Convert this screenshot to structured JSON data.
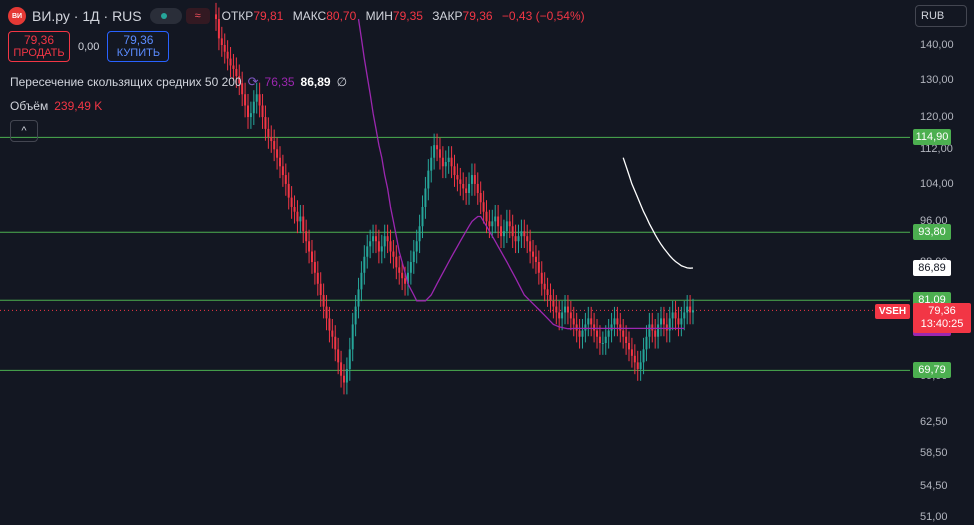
{
  "header": {
    "logo_text": "ВИ",
    "symbol": "ВИ.ру · 1Д · RUS",
    "wave_icon": "≈",
    "ohlc": [
      {
        "key": "ОТКР",
        "value": "79,81"
      },
      {
        "key": "МАКС",
        "value": "80,70"
      },
      {
        "key": "МИН",
        "value": "79,35"
      },
      {
        "key": "ЗАКР",
        "value": "79,36"
      }
    ],
    "change": "−0,43 (−0,54%)"
  },
  "trade": {
    "sell_price": "79,36",
    "sell_label": "ПРОДАТЬ",
    "spread": "0,00",
    "buy_price": "79,36",
    "buy_label": "КУПИТЬ"
  },
  "indicators": {
    "ma_label": "Пересечение скользящих средних 50 200",
    "ma50_value": "76,35",
    "ma200_value": "86,89",
    "null_symbol": "∅",
    "volume_label": "Объём",
    "volume_value": "239,49 K"
  },
  "controls": {
    "collapse_icon": "^"
  },
  "currency": {
    "label": "RUB",
    "icon": "chevron-down-icon"
  },
  "price_axis": {
    "ticks": [
      "140,00",
      "130,00",
      "120,00",
      "112,00",
      "104,00",
      "96,00",
      "88,00",
      "69,00",
      "62,50",
      "58,50",
      "54,50",
      "51,00"
    ]
  },
  "levels": [
    {
      "label": "114,90",
      "value": 114.9
    },
    {
      "label": "93,80",
      "value": 93.8
    },
    {
      "label": "81,09",
      "value": 81.09
    },
    {
      "label": "69,79",
      "value": 69.79
    }
  ],
  "ma_tags": {
    "ma200": "86,89",
    "ma50": "76,35"
  },
  "price_tag": {
    "exchange": "VSEH",
    "price": "79,36",
    "countdown": "13:40:25"
  },
  "colors": {
    "background": "#131722",
    "up": "#26a69a",
    "down": "#f23645",
    "level": "#4caf50",
    "ma50": "#9c27b0",
    "ma200": "#ffffff"
  },
  "chart_data": {
    "type": "candlestick",
    "symbol": "ВИ.ру",
    "interval": "1Д",
    "y_scale": "log",
    "ylim": [
      50,
      150
    ],
    "close": [
      148,
      142,
      140,
      138,
      136,
      134,
      133,
      131,
      129,
      126,
      123,
      120,
      121,
      124,
      126,
      123,
      120,
      117,
      115,
      114,
      112,
      110,
      108,
      106,
      104,
      101,
      99,
      98,
      96,
      97,
      94,
      92,
      90,
      88,
      86,
      84,
      82,
      80,
      78,
      76,
      75,
      73,
      71,
      69,
      68,
      70,
      73,
      77,
      80,
      83,
      86,
      89,
      91,
      92,
      93,
      92,
      90,
      91,
      93,
      92,
      90,
      89,
      87,
      86,
      85,
      84,
      86,
      88,
      90,
      92,
      95,
      99,
      103,
      107,
      110,
      113,
      112,
      110,
      108,
      109,
      110,
      108,
      106,
      105,
      104,
      103,
      102,
      104,
      106,
      104,
      102,
      100,
      98,
      96,
      95,
      96,
      97,
      95,
      93,
      94,
      96,
      95,
      93,
      92,
      93,
      94,
      93,
      92,
      90,
      89,
      88,
      86,
      84,
      83,
      82,
      81,
      80,
      79,
      78,
      79,
      80,
      79,
      78,
      77,
      76,
      75,
      76,
      77,
      78,
      77,
      76,
      75,
      74,
      74,
      75,
      76,
      77,
      78,
      77,
      76,
      75,
      74,
      73,
      72,
      71,
      70,
      71,
      73,
      75,
      77,
      76,
      75,
      77,
      78,
      77,
      76,
      78,
      79,
      78,
      77,
      78,
      79,
      80,
      79,
      79.36
    ],
    "ma50": [
      null,
      null,
      null,
      null,
      null,
      null,
      null,
      null,
      null,
      null,
      null,
      null,
      null,
      null,
      null,
      null,
      null,
      null,
      null,
      null,
      null,
      null,
      null,
      null,
      null,
      null,
      null,
      null,
      null,
      null,
      null,
      null,
      null,
      null,
      null,
      null,
      null,
      null,
      null,
      null,
      null,
      null,
      null,
      null,
      null,
      null,
      null,
      null,
      null,
      148,
      142,
      136,
      131,
      126,
      121,
      117,
      113,
      110,
      106,
      103,
      99,
      96,
      93,
      90,
      88,
      86,
      84,
      83,
      82,
      81,
      81,
      81,
      81,
      81.5,
      82,
      83,
      84,
      85,
      86,
      87,
      88,
      89,
      90,
      91,
      92,
      93,
      94,
      95,
      96,
      96.5,
      97,
      97,
      96,
      95,
      94,
      93,
      92,
      91,
      90,
      89,
      88,
      87,
      86,
      85,
      84,
      83,
      82,
      81.5,
      81,
      80.5,
      80,
      79.5,
      79,
      78.5,
      78,
      77.5,
      77,
      76.8,
      76.6,
      76.5,
      76.4,
      76.3,
      76.3,
      76.35,
      76.35,
      76.35,
      76.35,
      76.35,
      76.35,
      76.35,
      76.35,
      76.35,
      76.35,
      76.35,
      76.35,
      76.35,
      76.35,
      76.35,
      76.35,
      76.35,
      76.35,
      76.35,
      76.35,
      76.35,
      76.35,
      76.35,
      76.35,
      76.35,
      76.35,
      76.35,
      76.35,
      76.35,
      76.35,
      76.35,
      76.35,
      76.35,
      76.35,
      76.35,
      76.35,
      76.35,
      76.35,
      76.35
    ],
    "ma200": [
      110,
      108,
      106,
      104,
      102.5,
      101,
      99.5,
      98,
      96.8,
      95.5,
      94.4,
      93.3,
      92.3,
      91.4,
      90.6,
      89.9,
      89.2,
      88.6,
      88.1,
      87.7,
      87.3,
      87.1,
      86.9,
      86.85,
      86.89
    ]
  }
}
